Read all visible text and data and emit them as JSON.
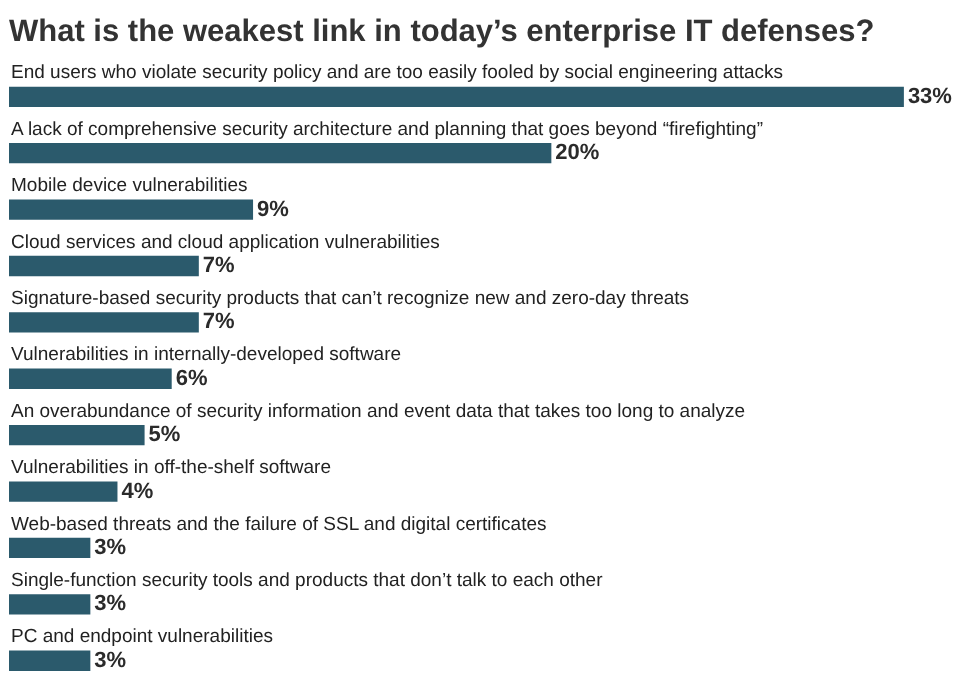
{
  "chart_data": {
    "type": "bar",
    "orientation": "horizontal",
    "title": "What is the weakest link in today’s enterprise IT defenses?",
    "categories": [
      "End users who violate security policy and are too easily fooled by social engineering attacks",
      "A lack of comprehensive security architecture and planning that goes beyond “firefighting”",
      "Mobile device vulnerabilities",
      "Cloud services and cloud application vulnerabilities",
      "Signature-based security products that can’t recognize new and zero-day threats",
      "Vulnerabilities in internally-developed software",
      "An overabundance of security information and event data that takes too long to analyze",
      "Vulnerabilities in off-the-shelf software",
      "Web-based threats and the failure of SSL and digital certificates",
      "Single-function security tools and products that don’t talk to each other",
      "PC and endpoint vulnerabilities"
    ],
    "values": [
      33,
      20,
      9,
      7,
      7,
      6,
      5,
      4,
      3,
      3,
      3
    ],
    "value_labels": [
      "33%",
      "20%",
      "9%",
      "7%",
      "7%",
      "6%",
      "5%",
      "4%",
      "3%",
      "3%",
      "3%"
    ],
    "color": "#2b5a6c"
  }
}
